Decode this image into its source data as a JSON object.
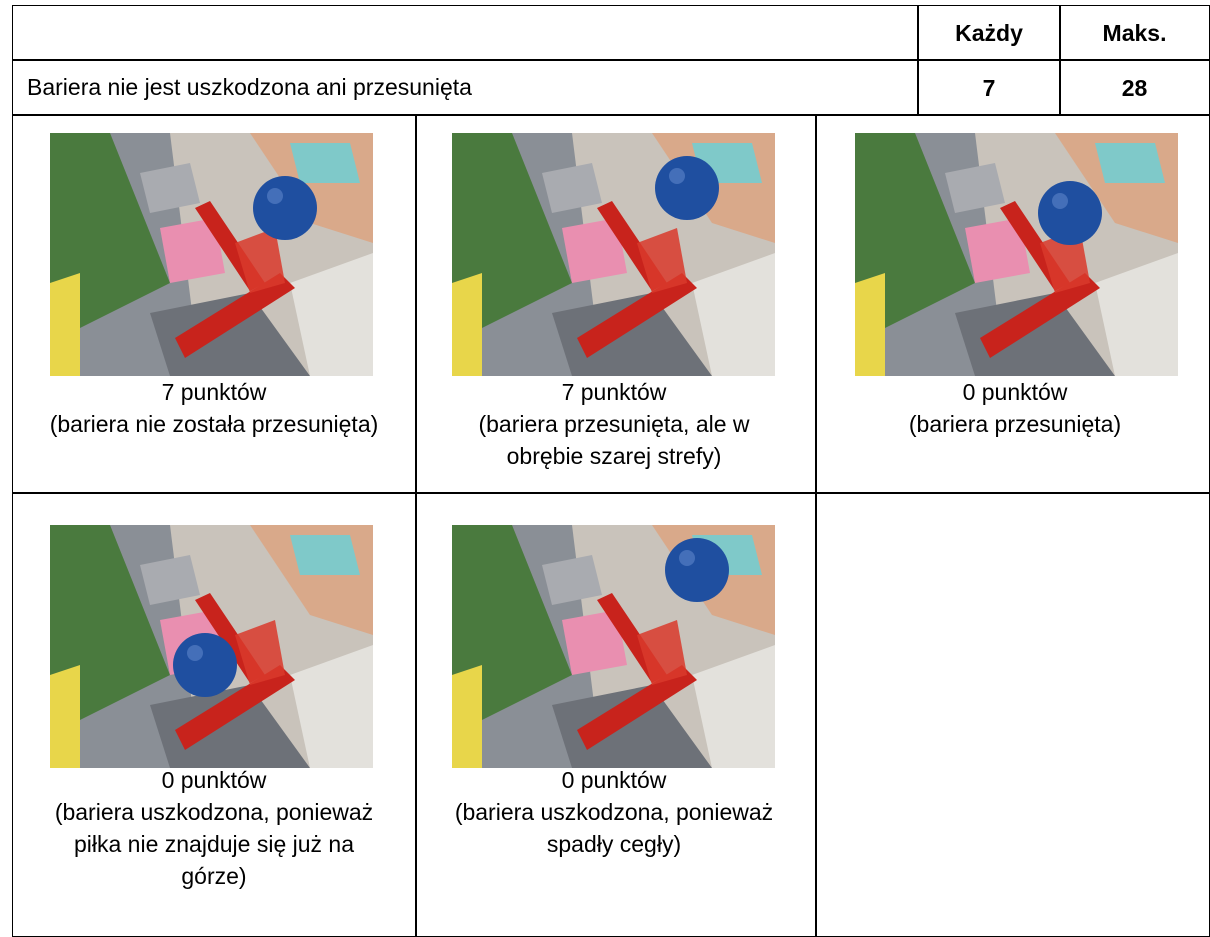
{
  "table": {
    "header": {
      "each": "Każdy",
      "max": "Maks."
    },
    "row": {
      "label": "Bariera nie jest uszkodzona ani przesunięta",
      "each": 7,
      "max": 28
    },
    "figures": [
      {
        "points": "7 punktów",
        "note": "(bariera nie została przesunięta)"
      },
      {
        "points": "7 punktów",
        "note": "(bariera przesunięta, ale w obrębie szarej strefy)"
      },
      {
        "points": "0 punktów",
        "note": "(bariera przesunięta)"
      },
      {
        "points": "0 punktów",
        "note": "(bariera uszkodzona, ponieważ piłka nie znajduje się już na górze)"
      },
      {
        "points": "0 punktów",
        "note": "(bariera uszkodzona, ponieważ spadły cegły)"
      }
    ]
  }
}
